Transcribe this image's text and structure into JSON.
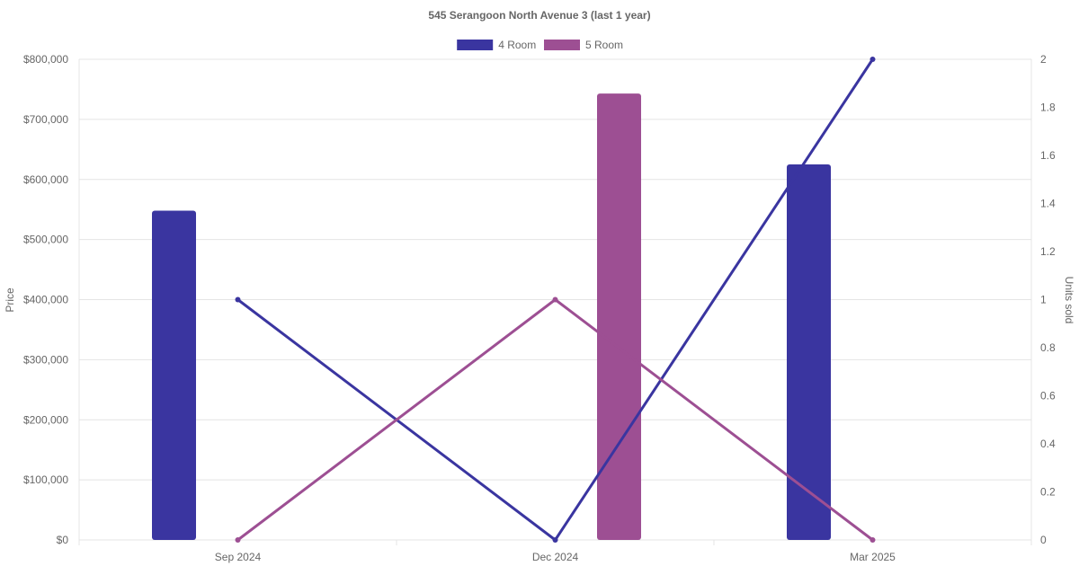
{
  "chart_data": {
    "type": "bar",
    "title": "545 Serangoon North Avenue 3 (last 1 year)",
    "categories": [
      "Sep 2024",
      "Dec 2024",
      "Mar 2025"
    ],
    "y_left": {
      "label": "Price",
      "min": 0,
      "max": 800000,
      "ticks": [
        "$0",
        "$100,000",
        "$200,000",
        "$300,000",
        "$400,000",
        "$500,000",
        "$600,000",
        "$700,000",
        "$800,000"
      ]
    },
    "y_right": {
      "label": "Units sold",
      "min": 0,
      "max": 2,
      "ticks": [
        "0",
        "0.2",
        "0.4",
        "0.6",
        "0.8",
        "1",
        "1.2",
        "1.4",
        "1.6",
        "1.8",
        "2"
      ]
    },
    "legend_position": "top",
    "grid": true,
    "series": [
      {
        "name": "4 Room",
        "color": "#3a35a0",
        "price": [
          548000,
          null,
          625000
        ],
        "units_sold": [
          1,
          0,
          2
        ]
      },
      {
        "name": "5 Room",
        "color": "#9d4f93",
        "price": [
          null,
          743000,
          null
        ],
        "units_sold": [
          0,
          1,
          0
        ]
      }
    ]
  }
}
